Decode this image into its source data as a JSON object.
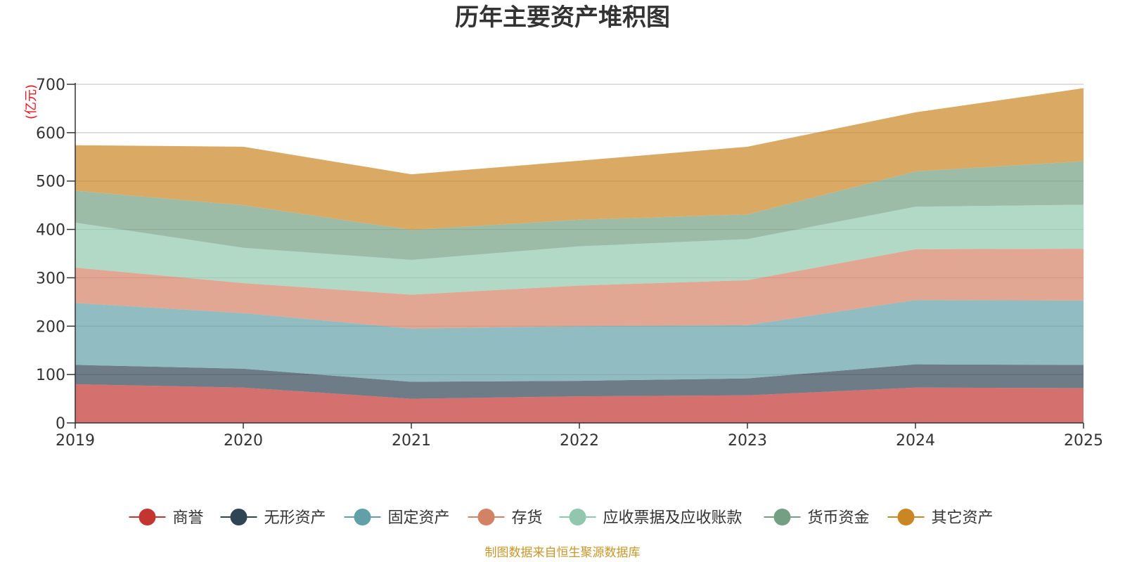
{
  "chart_data": {
    "type": "area",
    "stacked": true,
    "title": "历年主要资产堆积图",
    "ylabel": "(亿元)",
    "xlabel": "",
    "ylim": [
      0,
      700
    ],
    "yticks": [
      0,
      100,
      200,
      300,
      400,
      500,
      600,
      700
    ],
    "categories": [
      "2019",
      "2020",
      "2021",
      "2022",
      "2023",
      "2024",
      "2025"
    ],
    "series": [
      {
        "name": "商誉",
        "color": "#c23531",
        "values": [
          80,
          73,
          50,
          55,
          57,
          73,
          72
        ]
      },
      {
        "name": "无形资产",
        "color": "#2f4554",
        "values": [
          40,
          39,
          35,
          32,
          35,
          48,
          48
        ]
      },
      {
        "name": "固定资产",
        "color": "#61a0a8",
        "values": [
          128,
          115,
          110,
          113,
          110,
          133,
          133
        ]
      },
      {
        "name": "存货",
        "color": "#d48265",
        "values": [
          73,
          62,
          70,
          84,
          93,
          105,
          107
        ]
      },
      {
        "name": "应收票据及应收账款",
        "color": "#91c7ae",
        "values": [
          93,
          73,
          72,
          81,
          85,
          88,
          91
        ]
      },
      {
        "name": "货币资金",
        "color": "#749f83",
        "values": [
          66,
          88,
          62,
          55,
          51,
          73,
          90
        ]
      },
      {
        "name": "其它资产",
        "color": "#ca8622",
        "values": [
          94,
          121,
          115,
          122,
          140,
          122,
          151
        ]
      }
    ],
    "legend_position": "bottom",
    "grid": true,
    "source_note": "制图数据来自恒生聚源数据库"
  }
}
